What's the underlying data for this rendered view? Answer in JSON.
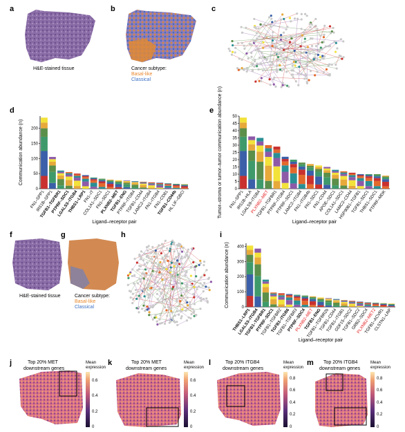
{
  "panel_labels": [
    "a",
    "b",
    "c",
    "d",
    "e",
    "f",
    "g",
    "h",
    "i",
    "j",
    "k",
    "l",
    "m"
  ],
  "captions": {
    "a": "H&E-stained tissue",
    "b_title": "Cancer subtype:",
    "b_basal": "Basal-like",
    "b_classical": "Classical",
    "f": "H&E-stained tissue",
    "g_title": "Cancer subtype:",
    "g_basal": "Basal-like",
    "g_classical": "Classical"
  },
  "colors": {
    "basal": "#e8872b",
    "classical": "#3a6fc4",
    "red_label": "#e41a1c",
    "he_tissue": "#8b6aa8"
  },
  "heatmap_panels": [
    {
      "id": "j",
      "title1": "Top 20% MET",
      "title2": "downstream genes",
      "legend_title1": "Mean",
      "legend_title2": "expression",
      "ticks": [
        "0.6",
        "0.4",
        "0.2",
        "0"
      ]
    },
    {
      "id": "k",
      "title1": "Top 20% MET",
      "title2": "downstream genes",
      "legend_title1": "Mean",
      "legend_title2": "expression",
      "ticks": [
        "0.6",
        "0.4",
        "0.2",
        "0"
      ]
    },
    {
      "id": "l",
      "title1": "Top 20% ITGB4",
      "title2": "downstream genes",
      "legend_title1": "Mean",
      "legend_title2": "expression",
      "ticks": [
        "0.8",
        "0.6",
        "0.4",
        "0.2",
        "0"
      ]
    },
    {
      "id": "m",
      "title1": "Top 20% ITGB4",
      "title2": "downstream genes",
      "legend_title1": "Mean",
      "legend_title2": "expression",
      "ticks": [
        "0.8",
        "0.6",
        "0.4",
        "0.2",
        "0"
      ]
    }
  ],
  "chart_data": [
    {
      "id": "d",
      "type": "bar",
      "xlabel": "Ligand–receptor pair",
      "ylabel": "Communication abundance (n)",
      "ylim": [
        0,
        240
      ],
      "yticks": [
        0,
        50,
        100,
        150,
        200
      ],
      "categories": [
        "FN1–SPP1",
        "IRS1B–SPP1",
        "TGFB1–TGFBR1",
        "PTPRF–SDC1",
        "LGALS3–ITGB4",
        "THBS1–LRP1",
        "FN1–IT",
        "COL1A1–SDC1",
        "FN1–SDC1",
        "PLXNB2–MET",
        "TGFB1–ENG",
        "PTPRF–ITGB4",
        "TGFB1–CD44",
        "LAMC2–ITGB4",
        "FN1–ITGB4",
        "FN1–CD81",
        "TGFB1–CD44b",
        "HL LIF–GBCI"
      ],
      "bold_labels": [
        "TGFB1–TGFBR1",
        "PTPRF–SDC1",
        "LGALS3–ITGB4",
        "THBS1–LRP1",
        "PLXNB2–MET",
        "TGFB1–ENG",
        "TGFB1–CD44b"
      ],
      "values": [
        235,
        105,
        60,
        55,
        50,
        45,
        37,
        33,
        30,
        28,
        27,
        25,
        23,
        21,
        20,
        18,
        16,
        15
      ]
    },
    {
      "id": "e",
      "type": "bar",
      "xlabel": "Ligand–receptor pair",
      "ylabel": "Tumor–stroma or tumor–tumor communication abundance (n)",
      "ylim": [
        0,
        50
      ],
      "yticks": [
        0,
        5,
        10,
        15,
        20,
        25,
        30,
        35,
        40,
        45,
        50
      ],
      "categories": [
        "FN1–SPP1",
        "IRS1B–HLA",
        "LGALS9–ITGB4",
        "PLXNB2–MET",
        "TGFB1–TGFBR1",
        "PTPRF–ITGB4",
        "PTPRF–SDC1",
        "LAMC2–ITGB4",
        "FN1–ITGB4b",
        "FN1–SDC1",
        "FN1–CD44",
        "APOE–SDC1",
        "COL1A1–SDC1",
        "LAMC2–CD44",
        "HSP90B1–TGFB1",
        "TGFB1–SDC1",
        "THBS1–SDC1",
        "PTPRF–MDK"
      ],
      "red_labels": [
        "PLXNB2–MET"
      ],
      "values": [
        49,
        36,
        35,
        30,
        29,
        22,
        20,
        18,
        17,
        16,
        15,
        13,
        12,
        11,
        10,
        10,
        10,
        9
      ]
    },
    {
      "id": "i",
      "type": "bar",
      "xlabel": "Ligand–receptor pair",
      "ylabel": "Communication abundance (n)",
      "ylim": [
        0,
        420
      ],
      "yticks": [
        0,
        100,
        200,
        300,
        400
      ],
      "categories": [
        "THBS1–LRP1",
        "LGALS3–ITGB4",
        "TGFB1–TGFBR1",
        "PTPRF–SDC1",
        "TGFB1–TGFBR2",
        "TGFB1–ITGB6",
        "TGFB1–TGFBR3",
        "PTPRF–SDC4",
        "PLXNB2–MET",
        "TGFB1–ENG",
        "TGFB1–TGFBR2b",
        "TGFB1–CD44",
        "TGFB1–ITGB1",
        "GDF15–SDC2",
        "TGFB1–SDC2",
        "GRB2–SDC4",
        "PLXNB2–MET2",
        "TGFB1–ACVR1",
        "CLSTN1–LRP"
      ],
      "bold_labels": [
        "THBS1–LRP1",
        "LGALS3–ITGB4",
        "TGFB1–TGFBR1",
        "PTPRF–SDC1",
        "PTPRF–SDC4",
        "TGFB1–ITGB6",
        "TGFB1–ENG"
      ],
      "red_labels": [
        "PLXNB2–MET",
        "PLXNB2–MET2"
      ],
      "values": [
        405,
        385,
        180,
        95,
        90,
        85,
        80,
        75,
        70,
        62,
        58,
        52,
        45,
        40,
        35,
        30,
        28,
        25,
        22
      ]
    }
  ]
}
